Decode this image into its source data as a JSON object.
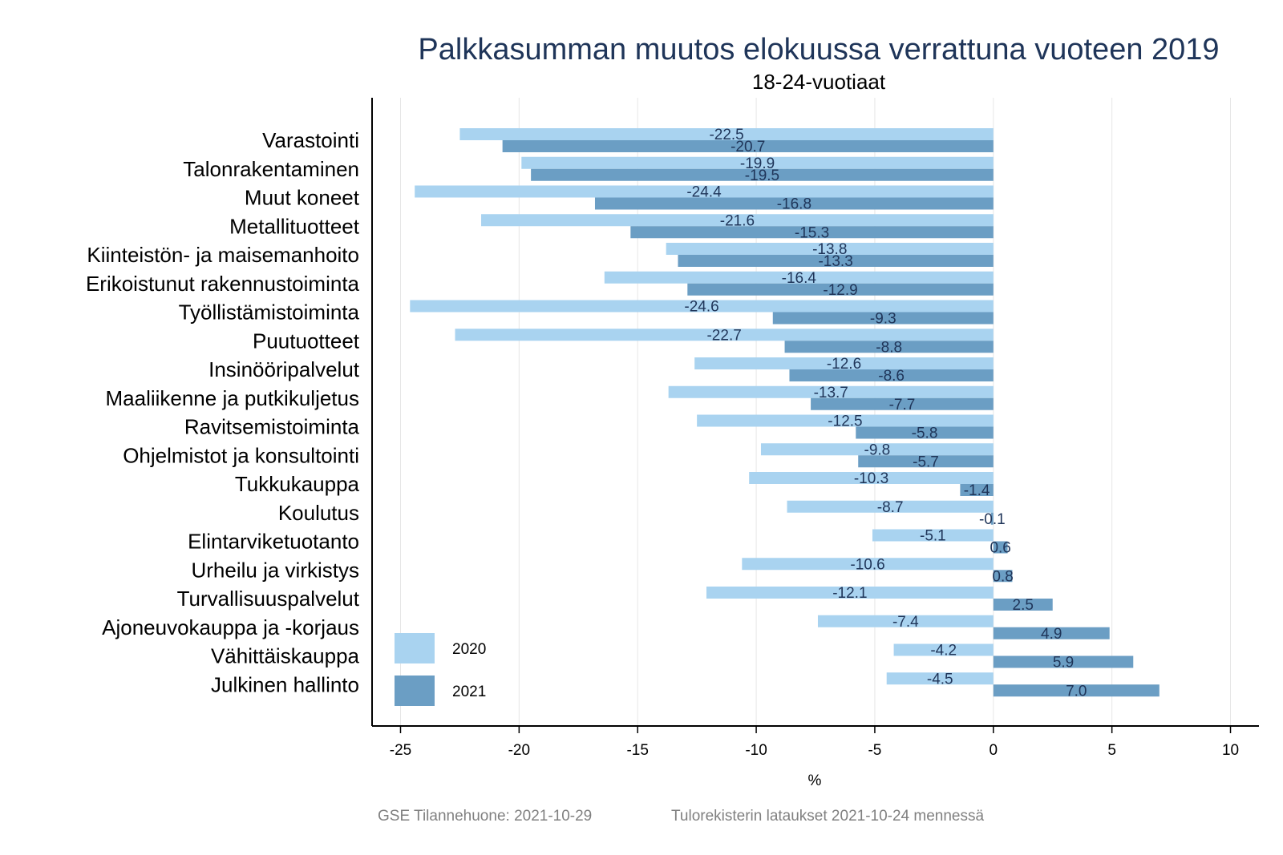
{
  "colors": {
    "series_2020": "#a9d3f0",
    "series_2021": "#6b9ec4",
    "grid": "#e6e6e6",
    "axis": "#000000",
    "title": "#1f3559",
    "footer": "#808080"
  },
  "footer": {
    "left": "GSE Tilannehuone: 2021-10-29",
    "right": "Tulorekisterin lataukset 2021-10-24 mennessä"
  },
  "chart_data": {
    "type": "bar",
    "orientation": "horizontal",
    "title": "Palkkasumman muutos elokuussa verrattuna vuoteen 2019",
    "subtitle": "18-24-vuotiaat",
    "xlabel": "%",
    "ylabel": "",
    "xlim": [
      -26.2,
      11.2
    ],
    "xticks": [
      -25,
      -20,
      -15,
      -10,
      -5,
      0,
      5,
      10
    ],
    "tick_labels": [
      "-25",
      "-20",
      "-15",
      "-10",
      "-5",
      "0",
      "5",
      "10"
    ],
    "grid": "vertical",
    "legend_position": "bottom-left",
    "categories": [
      "Varastointi",
      "Talonrakentaminen",
      "Muut koneet",
      "Metallituotteet",
      "Kiinteistön- ja maisemanhoito",
      "Erikoistunut rakennustoiminta",
      "Työllistämistoiminta",
      "Puutuotteet",
      "Insinööripalvelut",
      "Maaliikenne ja putkikuljetus",
      "Ravitsemistoiminta",
      "Ohjelmistot ja konsultointi",
      "Tukkukauppa",
      "Koulutus",
      "Elintarviketuotanto",
      "Urheilu ja virkistys",
      "Turvallisuuspalvelut",
      "Ajoneuvokauppa ja -korjaus",
      "Vähittäiskauppa",
      "Julkinen hallinto"
    ],
    "series": [
      {
        "name": "2020",
        "values": [
          -22.5,
          -19.9,
          -24.4,
          -21.6,
          -13.8,
          -16.4,
          -24.6,
          -22.7,
          -12.6,
          -13.7,
          -12.5,
          -9.8,
          -10.3,
          -8.7,
          -5.1,
          -10.6,
          -12.1,
          -7.4,
          -4.2,
          -4.5
        ],
        "labels": [
          "-22.5",
          "-19.9",
          "-24.4",
          "-21.6",
          "-13.8",
          "-16.4",
          "-24.6",
          "-22.7",
          "-12.6",
          "-13.7",
          "-12.5",
          "-9.8",
          "-10.3",
          "-8.7",
          "-5.1",
          "-10.6",
          "-12.1",
          "-7.4",
          "-4.2",
          "-4.5"
        ]
      },
      {
        "name": "2021",
        "values": [
          -20.7,
          -19.5,
          -16.8,
          -15.3,
          -13.3,
          -12.9,
          -9.3,
          -8.8,
          -8.6,
          -7.7,
          -5.8,
          -5.7,
          -1.4,
          -0.1,
          0.6,
          0.8,
          2.5,
          4.9,
          5.9,
          7.0
        ],
        "labels": [
          "-20.7",
          "-19.5",
          "-16.8",
          "-15.3",
          "-13.3",
          "-12.9",
          "-9.3",
          "-8.8",
          "-8.6",
          "-7.7",
          "-5.8",
          "-5.7",
          "-1.4",
          "-0.1",
          "0.6",
          "0.8",
          "2.5",
          "4.9",
          "5.9",
          "7.0"
        ]
      }
    ]
  }
}
